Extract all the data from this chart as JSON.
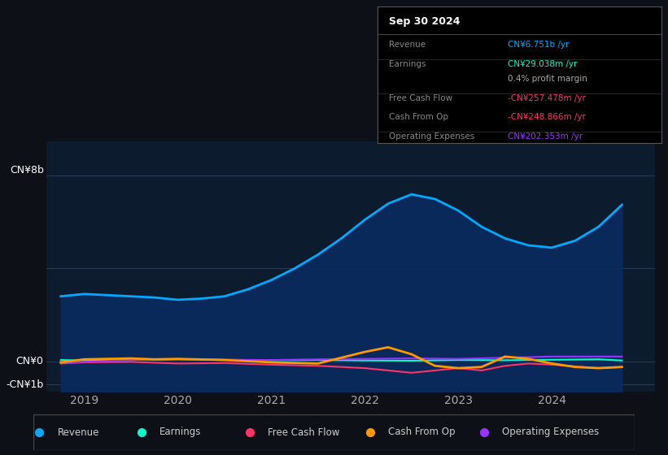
{
  "bg_color": "#0d1117",
  "plot_bg_color": "#0d1b2e",
  "y_label_top": "CN¥8b",
  "y_label_zero": "CN¥0",
  "y_label_neg": "-CN¥1b",
  "x_ticks": [
    2019,
    2020,
    2021,
    2022,
    2023,
    2024
  ],
  "ylim": [
    -1300000000.0,
    9500000000.0
  ],
  "revenue_color": "#00aaff",
  "revenue_fill_color": "#0a2a5e",
  "earnings_color": "#00ffcc",
  "fcf_color": "#ff3366",
  "cashfromop_color": "#ff9900",
  "opex_color": "#9933ff",
  "legend_items": [
    {
      "label": "Revenue",
      "color": "#00aaff"
    },
    {
      "label": "Earnings",
      "color": "#00ffcc"
    },
    {
      "label": "Free Cash Flow",
      "color": "#ff3366"
    },
    {
      "label": "Cash From Op",
      "color": "#ff9900"
    },
    {
      "label": "Operating Expenses",
      "color": "#9933ff"
    }
  ],
  "info_box": {
    "title": "Sep 30 2024",
    "rows": [
      {
        "label": "Revenue",
        "value": "CN¥6.751b /yr",
        "value_color": "#00aaff"
      },
      {
        "label": "Earnings",
        "value": "CN¥29.038m /yr",
        "value_color": "#00ffcc"
      },
      {
        "label": "",
        "value": "0.4% profit margin",
        "value_color": "#aaaaaa"
      },
      {
        "label": "Free Cash Flow",
        "value": "-CN¥257.478m /yr",
        "value_color": "#ff3366"
      },
      {
        "label": "Cash From Op",
        "value": "-CN¥248.866m /yr",
        "value_color": "#ff3366"
      },
      {
        "label": "Operating Expenses",
        "value": "CN¥202.353m /yr",
        "value_color": "#9933ff"
      }
    ]
  },
  "revenue_x": [
    2018.75,
    2019.0,
    2019.25,
    2019.5,
    2019.75,
    2020.0,
    2020.25,
    2020.5,
    2020.75,
    2021.0,
    2021.25,
    2021.5,
    2021.75,
    2022.0,
    2022.25,
    2022.5,
    2022.75,
    2023.0,
    2023.25,
    2023.5,
    2023.75,
    2024.0,
    2024.25,
    2024.5,
    2024.75
  ],
  "revenue_y": [
    2800000000.0,
    2900000000.0,
    2850000000.0,
    2800000000.0,
    2750000000.0,
    2650000000.0,
    2700000000.0,
    2800000000.0,
    3100000000.0,
    3500000000.0,
    4000000000.0,
    4600000000.0,
    5300000000.0,
    6100000000.0,
    6800000000.0,
    7200000000.0,
    7000000000.0,
    6500000000.0,
    5800000000.0,
    5300000000.0,
    5000000000.0,
    4900000000.0,
    5200000000.0,
    5800000000.0,
    6750000000.0
  ],
  "earnings_x": [
    2018.75,
    2019.0,
    2019.5,
    2020.0,
    2020.5,
    2021.0,
    2021.5,
    2022.0,
    2022.5,
    2023.0,
    2023.5,
    2024.0,
    2024.5,
    2024.75
  ],
  "earnings_y": [
    50000000.0,
    30000000.0,
    50000000.0,
    80000000.0,
    60000000.0,
    40000000.0,
    50000000.0,
    30000000.0,
    20000000.0,
    50000000.0,
    40000000.0,
    60000000.0,
    80000000.0,
    29000000.0
  ],
  "fcf_x": [
    2018.75,
    2019.0,
    2019.5,
    2020.0,
    2020.5,
    2021.0,
    2021.5,
    2022.0,
    2022.5,
    2023.0,
    2023.25,
    2023.5,
    2023.75,
    2024.0,
    2024.5,
    2024.75
  ],
  "fcf_y": [
    -100000000.0,
    -50000000.0,
    -30000000.0,
    -100000000.0,
    -80000000.0,
    -150000000.0,
    -200000000.0,
    -300000000.0,
    -500000000.0,
    -300000000.0,
    -400000000.0,
    -200000000.0,
    -100000000.0,
    -150000000.0,
    -300000000.0,
    -257000000.0
  ],
  "cashfromop_x": [
    2018.75,
    2019.0,
    2019.25,
    2019.5,
    2019.75,
    2020.0,
    2020.5,
    2021.0,
    2021.5,
    2022.0,
    2022.25,
    2022.5,
    2022.75,
    2023.0,
    2023.25,
    2023.5,
    2023.75,
    2024.0,
    2024.25,
    2024.5,
    2024.75
  ],
  "cashfromop_y": [
    -50000000.0,
    80000000.0,
    100000000.0,
    120000000.0,
    80000000.0,
    100000000.0,
    50000000.0,
    -50000000.0,
    -100000000.0,
    400000000.0,
    600000000.0,
    300000000.0,
    -200000000.0,
    -300000000.0,
    -250000000.0,
    200000000.0,
    100000000.0,
    -100000000.0,
    -250000000.0,
    -300000000.0,
    -249000000.0
  ],
  "opex_x": [
    2018.75,
    2019.0,
    2019.5,
    2020.0,
    2020.5,
    2021.0,
    2021.5,
    2022.0,
    2022.5,
    2023.0,
    2023.5,
    2024.0,
    2024.5,
    2024.75
  ],
  "opex_y": [
    -50000000.0,
    -30000000.0,
    50000000.0,
    80000000.0,
    60000000.0,
    50000000.0,
    80000000.0,
    100000000.0,
    120000000.0,
    100000000.0,
    150000000.0,
    200000000.0,
    200000000.0,
    200000000.0
  ]
}
